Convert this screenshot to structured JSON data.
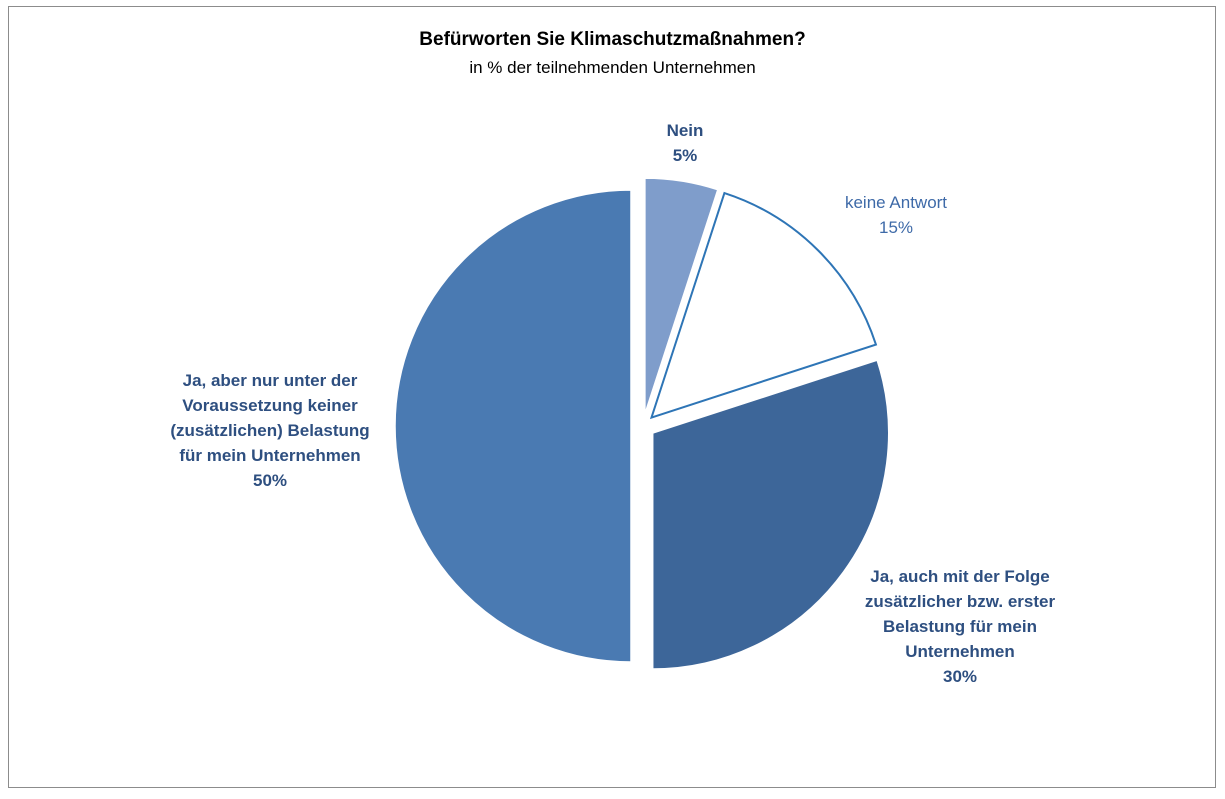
{
  "chart_data": {
    "type": "pie",
    "title": "Befürworten Sie Klimaschutzmaßnahmen?",
    "subtitle": "in % der teilnehmenden Unternehmen",
    "slices": [
      {
        "label": "Nein",
        "value": 5,
        "value_label": "5%",
        "color": "#7f9dcb",
        "stroke": "#ffffff"
      },
      {
        "label": "keine Antwort",
        "value": 15,
        "value_label": "15%",
        "color": "#ffffff",
        "stroke": "#2e75b6"
      },
      {
        "label": "Ja, auch mit der Folge zusätzlicher bzw. erster Belastung für mein Unternehmen",
        "value": 30,
        "value_label": "30%",
        "color": "#3d6699",
        "stroke": "#ffffff"
      },
      {
        "label": "Ja, aber nur unter der Voraussetzung keiner (zusätzlichen) Belastung für mein Unternehmen",
        "value": 50,
        "value_label": "50%",
        "color": "#4a7ab2",
        "stroke": "#ffffff"
      }
    ]
  },
  "labels": {
    "nein_line1": "Nein",
    "nein_value": "5%",
    "keine_line1": "keine Antwort",
    "keine_value": "15%",
    "auch_line1": "Ja, auch mit der Folge",
    "auch_line2": "zusätzlicher bzw. erster",
    "auch_line3": "Belastung für mein",
    "auch_line4": "Unternehmen",
    "auch_value": "30%",
    "aber_line1": "Ja, aber nur unter der",
    "aber_line2": "Voraussetzung keiner",
    "aber_line3": "(zusätzlichen) Belastung",
    "aber_line4": "für mein Unternehmen",
    "aber_value": "50%"
  }
}
